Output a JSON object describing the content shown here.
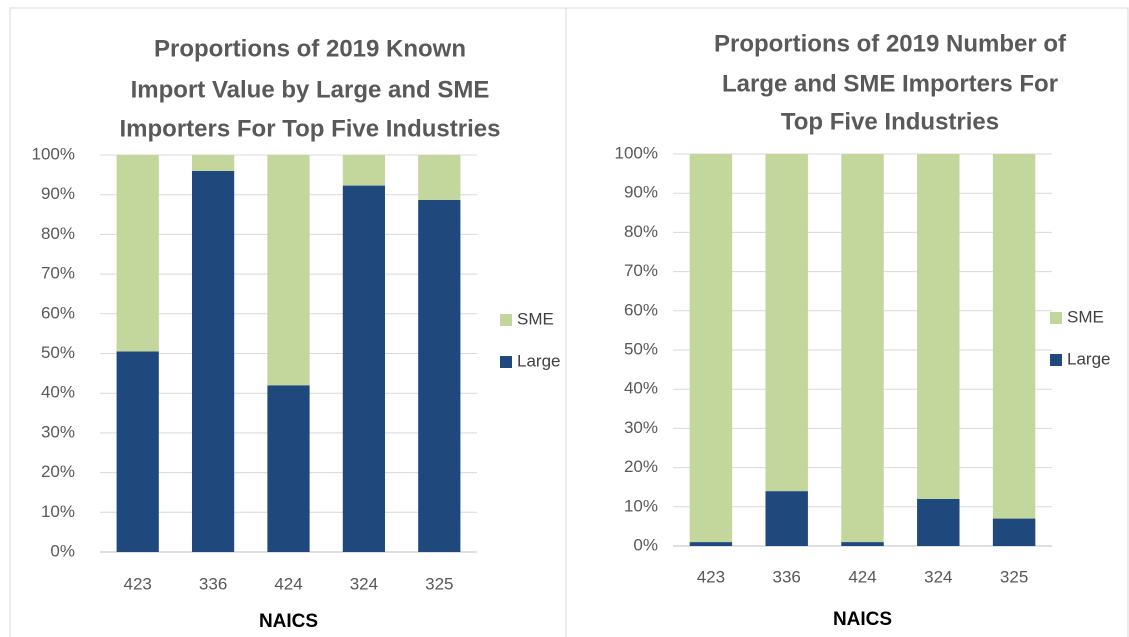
{
  "chart_data": [
    {
      "type": "stacked_bar",
      "title": [
        "Proportions of 2019 Known",
        "Import Value by Large and SME",
        "Importers For Top Five Industries"
      ],
      "x_label": "NAICS",
      "categories": [
        "423",
        "336",
        "424",
        "324",
        "325"
      ],
      "series": [
        {
          "name": "Large",
          "color": "#1f497d",
          "values": [
            50.5,
            96,
            42,
            92.3,
            88.7
          ]
        },
        {
          "name": "SME",
          "color": "#c3d69b",
          "values": [
            49.5,
            4,
            58,
            7.7,
            11.3
          ]
        }
      ],
      "ylim": [
        0,
        100
      ],
      "yticks": [
        {
          "value": 0,
          "label": "0%"
        },
        {
          "value": 10,
          "label": "10%"
        },
        {
          "value": 20,
          "label": "20%"
        },
        {
          "value": 30,
          "label": "30%"
        },
        {
          "value": 40,
          "label": "40%"
        },
        {
          "value": 50,
          "label": "50%"
        },
        {
          "value": 60,
          "label": "60%"
        },
        {
          "value": 70,
          "label": "70%"
        },
        {
          "value": 80,
          "label": "80%"
        },
        {
          "value": 90,
          "label": "90%"
        },
        {
          "value": 100,
          "label": "100%"
        }
      ],
      "grid": true,
      "legend": "right"
    },
    {
      "type": "stacked_bar",
      "title": [
        "Proportions of 2019 Number of",
        "Large and SME Importers For",
        "Top Five Industries"
      ],
      "x_label": "NAICS",
      "categories": [
        "423",
        "336",
        "424",
        "324",
        "325"
      ],
      "series": [
        {
          "name": "Large",
          "color": "#1f497d",
          "values": [
            1,
            14,
            1,
            12,
            7
          ]
        },
        {
          "name": "SME",
          "color": "#c3d69b",
          "values": [
            99,
            86,
            99,
            88,
            93
          ]
        }
      ],
      "ylim": [
        0,
        100
      ],
      "yticks": [
        {
          "value": 0,
          "label": "0%"
        },
        {
          "value": 10,
          "label": "10%"
        },
        {
          "value": 20,
          "label": "20%"
        },
        {
          "value": 30,
          "label": "30%"
        },
        {
          "value": 40,
          "label": "40%"
        },
        {
          "value": 50,
          "label": "50%"
        },
        {
          "value": 60,
          "label": "60%"
        },
        {
          "value": 70,
          "label": "70%"
        },
        {
          "value": 80,
          "label": "80%"
        },
        {
          "value": 90,
          "label": "90%"
        },
        {
          "value": 100,
          "label": "100%"
        }
      ],
      "grid": true,
      "legend": "right"
    }
  ]
}
